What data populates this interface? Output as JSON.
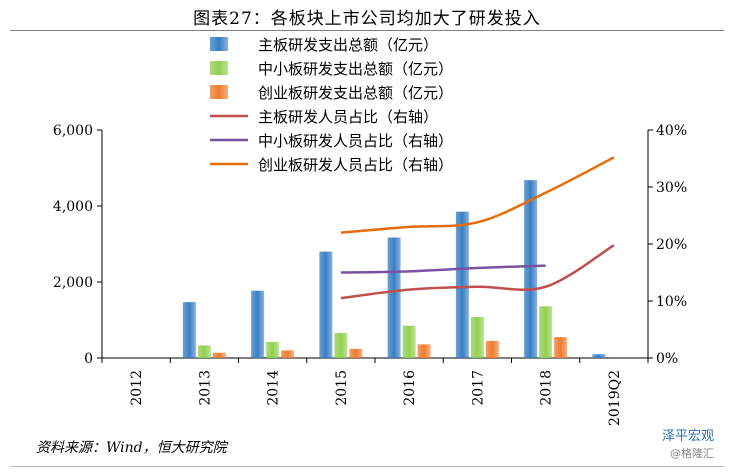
{
  "title": "图表27：各板块上市公司均加大了研发投入",
  "source": "资料来源：Wind，恒大研究院",
  "watermark": {
    "account": "泽平宏观",
    "sub": "@格隆汇"
  },
  "chart_data": {
    "type": "bar",
    "categories": [
      "2012",
      "2013",
      "2014",
      "2015",
      "2016",
      "2017",
      "2018",
      "2019Q2"
    ],
    "y_left": {
      "lim": [
        0,
        6000
      ],
      "ticks": [
        0,
        2000,
        4000,
        6000
      ],
      "tick_labels": [
        "0",
        "2,000",
        "4,000",
        "6,000"
      ]
    },
    "y_right": {
      "lim": [
        0,
        40
      ],
      "ticks": [
        0,
        10,
        20,
        30,
        40
      ],
      "tick_labels": [
        "0%",
        "10%",
        "20%",
        "30%",
        "40%"
      ]
    },
    "bar_series": [
      {
        "name": "主板研发支出总额（亿元）",
        "color": "#3a7fc4",
        "values": [
          null,
          1470,
          1770,
          2800,
          3170,
          3850,
          4680,
          100
        ]
      },
      {
        "name": "中小板研发支出总额（亿元）",
        "color": "#92d050",
        "values": [
          null,
          330,
          420,
          660,
          850,
          1080,
          1360,
          null
        ]
      },
      {
        "name": "创业板研发支出总额（亿元）",
        "color": "#ed7d31",
        "values": [
          null,
          140,
          200,
          240,
          360,
          450,
          550,
          null
        ]
      }
    ],
    "line_series": [
      {
        "name": "主板研发人员占比（右轴）",
        "color": "#c0504d",
        "values": [
          null,
          null,
          null,
          10.5,
          12,
          12.5,
          12.5,
          19.8
        ]
      },
      {
        "name": "中小板研发人员占比（右轴）",
        "color": "#7b52a3",
        "values": [
          null,
          null,
          null,
          15,
          15.2,
          15.8,
          16.2,
          null
        ]
      },
      {
        "name": "创业板研发人员占比（右轴）",
        "color": "#e46c0a",
        "values": [
          null,
          null,
          null,
          22,
          23,
          23.8,
          29,
          35.2
        ]
      }
    ],
    "legend_position": "top-center",
    "grid": false
  }
}
